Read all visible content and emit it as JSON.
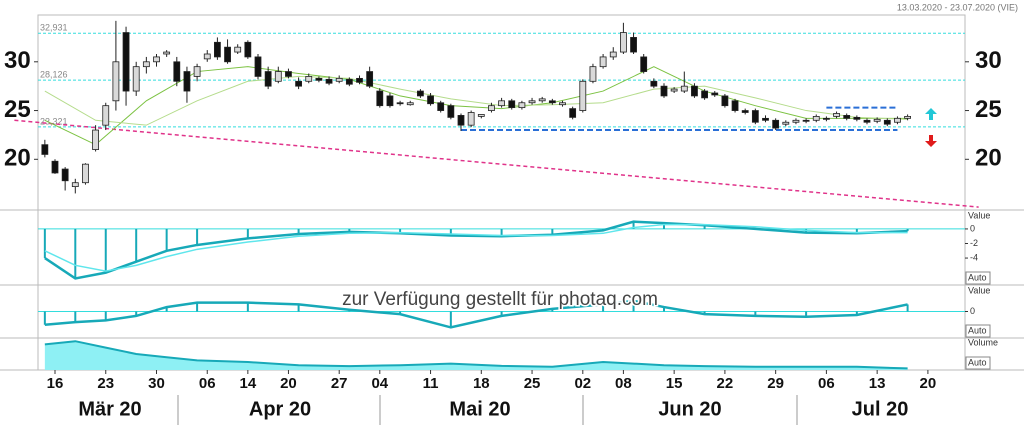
{
  "date_range": "13.03.2020 - 23.07.2020 (VIE)",
  "watermark": "zur Verfügung gestellt für photaq.com",
  "chart_data": [
    {
      "type": "candlestick",
      "ylim": [
        14.8,
        34.8
      ],
      "yticks": [
        20,
        25,
        30
      ],
      "open": [
        21.5,
        19.8,
        19,
        17.2,
        17.6,
        21,
        23.5,
        26,
        33,
        27,
        29.5,
        30,
        30.8,
        30,
        29,
        28.5,
        30.3,
        32,
        31.5,
        31,
        32,
        30.5,
        29,
        28,
        29,
        28,
        28,
        28.3,
        28.2,
        28,
        28.2,
        28.3,
        29,
        27,
        26.5,
        25.8,
        25.6,
        27,
        26.5,
        25.8,
        25.5,
        24.5,
        23.5,
        24.4,
        25,
        25.5,
        26,
        25.3,
        25.8,
        26,
        26,
        25.6,
        25.2,
        25,
        28,
        29.5,
        30.5,
        31,
        32.5,
        30.5,
        28,
        27.5,
        27,
        27,
        27.5,
        27,
        26.8,
        26.5,
        26,
        25,
        25,
        24.2,
        24,
        23.6,
        23.8,
        24,
        24,
        24.2,
        24.4,
        24.5,
        24.3,
        24,
        23.9,
        24,
        23.8,
        24.2
      ],
      "high": [
        22,
        20,
        19.2,
        18,
        19.6,
        23.5,
        25.8,
        34.2,
        33.6,
        30,
        30.5,
        30.8,
        31.2,
        30.5,
        29.5,
        29.8,
        31.2,
        32.5,
        32.3,
        31.8,
        32.2,
        30.8,
        29.5,
        29.5,
        29.3,
        28.4,
        28.8,
        28.5,
        28.5,
        28.6,
        28.4,
        28.6,
        29.5,
        27.3,
        26.8,
        26,
        26,
        27.2,
        26.8,
        26,
        25.7,
        24.7,
        25,
        24.6,
        25.8,
        26.3,
        26.2,
        26,
        26.3,
        26.4,
        26.2,
        26,
        25.4,
        28.2,
        29.8,
        30.8,
        31.5,
        34,
        33,
        30.8,
        28.3,
        27.8,
        27.4,
        29,
        27.8,
        27.2,
        27,
        26.7,
        26.2,
        25.2,
        25.2,
        24.5,
        24.2,
        24,
        24.2,
        24.2,
        24.6,
        24.4,
        24.9,
        24.7,
        24.5,
        24.2,
        24.3,
        24.2,
        24.4,
        24.6
      ],
      "low": [
        20.2,
        18.5,
        16.8,
        16.5,
        17.4,
        20.8,
        23,
        25,
        25.5,
        26.5,
        28.8,
        29.5,
        30.5,
        27.5,
        25.8,
        28,
        30,
        30.2,
        29.8,
        30.8,
        30.3,
        28.2,
        27.2,
        27.8,
        28.3,
        27.2,
        27.8,
        27.9,
        27.6,
        27.8,
        27.5,
        27.7,
        27.3,
        25.3,
        25.3,
        25.5,
        25.5,
        26.3,
        25.5,
        24.8,
        24.1,
        22.9,
        23.3,
        24.2,
        24.8,
        25.3,
        25.1,
        25.1,
        25.6,
        25.8,
        25.6,
        25.4,
        24.1,
        24.8,
        27.8,
        29.3,
        30.2,
        30.8,
        30.8,
        28.8,
        27.3,
        26.3,
        26.8,
        26.8,
        26.3,
        26.1,
        26.4,
        25.3,
        24.8,
        24.6,
        23.6,
        23.8,
        23,
        23.4,
        23.6,
        23.7,
        23.8,
        23.9,
        24.2,
        24,
        23.9,
        23.6,
        23.7,
        23.4,
        23.6,
        24
      ],
      "close": [
        20.5,
        18.6,
        17.8,
        17.6,
        19.5,
        23,
        25.5,
        30,
        27,
        29.5,
        30,
        30.5,
        31,
        28,
        27,
        29.5,
        30.8,
        30.5,
        30,
        31.5,
        30.5,
        28.5,
        27.5,
        29,
        28.5,
        27.5,
        28.5,
        28.1,
        27.8,
        28.3,
        27.7,
        27.9,
        27.5,
        25.5,
        25.5,
        25.7,
        25.8,
        26.5,
        25.7,
        25,
        24.3,
        23.5,
        24.8,
        24.6,
        25.5,
        26,
        25.3,
        25.8,
        26,
        26.2,
        25.8,
        25.8,
        24.3,
        28,
        29.5,
        30.5,
        31,
        33,
        31,
        29,
        27.5,
        26.5,
        27.2,
        27.5,
        26.5,
        26.3,
        26.6,
        25.5,
        25,
        24.8,
        23.8,
        24,
        23.2,
        23.8,
        24,
        23.9,
        24.4,
        24.1,
        24.7,
        24.2,
        24.1,
        23.8,
        24.1,
        23.6,
        24.2,
        24.4
      ],
      "up_color": "#d9d9d9",
      "down_color": "#111111",
      "moving_averages": [
        {
          "color": "#7cc242",
          "x": [
            0,
            5,
            10,
            15,
            20,
            25,
            30,
            35,
            40,
            45,
            50,
            55,
            60,
            65,
            70,
            75,
            80,
            85
          ],
          "values": [
            24,
            21.5,
            26,
            29,
            29.5,
            28.8,
            28.2,
            26.5,
            25.5,
            25.2,
            25.8,
            27,
            29.5,
            27,
            25.5,
            24.2,
            24.2,
            24.2
          ]
        },
        {
          "color": "#b5dc8c",
          "x": [
            0,
            5,
            10,
            15,
            20,
            25,
            30,
            35,
            40,
            45,
            50,
            55,
            60,
            65,
            70,
            75,
            80,
            85
          ],
          "values": [
            27,
            24,
            23.5,
            26,
            28,
            28.5,
            28.3,
            27.2,
            26.2,
            25.5,
            25.6,
            25.8,
            27.2,
            27.5,
            26.3,
            25,
            24.3,
            24.1
          ]
        }
      ],
      "levels": [
        {
          "value": 32.931,
          "label": "32,931"
        },
        {
          "value": 28.126,
          "label": "28,126"
        },
        {
          "value": 23.321,
          "label": "23,321"
        }
      ],
      "level_color": "#33dddd",
      "trendline": {
        "x": [
          -3,
          92
        ],
        "values": [
          24,
          15.1
        ],
        "color": "#e0338a"
      },
      "support": {
        "x": [
          41,
          84
        ],
        "value": 23.0,
        "color": "#2a6fd6"
      },
      "resistance": {
        "x": [
          77,
          84
        ],
        "value": 25.3,
        "color": "#2a6fd6"
      },
      "xticks": [
        {
          "value": 1,
          "label": "16"
        },
        {
          "value": 6,
          "label": "23"
        },
        {
          "value": 11,
          "label": "30"
        },
        {
          "value": 16,
          "label": "06"
        },
        {
          "value": 20,
          "label": "14"
        },
        {
          "value": 24,
          "label": "20"
        },
        {
          "value": 29,
          "label": "27"
        },
        {
          "value": 33,
          "label": "04"
        },
        {
          "value": 38,
          "label": "11"
        },
        {
          "value": 43,
          "label": "18"
        },
        {
          "value": 48,
          "label": "25"
        },
        {
          "value": 53,
          "label": "02"
        },
        {
          "value": 57,
          "label": "08"
        },
        {
          "value": 62,
          "label": "15"
        },
        {
          "value": 67,
          "label": "22"
        },
        {
          "value": 72,
          "label": "29"
        },
        {
          "value": 77,
          "label": "06"
        },
        {
          "value": 82,
          "label": "13"
        },
        {
          "value": 87,
          "label": "20"
        }
      ],
      "months": [
        "Mär 20",
        "Apr 20",
        "Mai 20",
        "Jun 20",
        "Jul 20"
      ]
    },
    {
      "type": "indicator",
      "label": "Value",
      "button": "Auto",
      "ylim": [
        -7.7,
        2.6
      ],
      "yticks": [
        0,
        -2,
        -4
      ],
      "x": [
        0,
        3,
        6,
        9,
        12,
        15,
        20,
        25,
        30,
        35,
        40,
        45,
        50,
        55,
        58,
        61,
        65,
        70,
        75,
        80,
        85
      ],
      "values": [
        -4,
        -6.8,
        -6,
        -4.5,
        -3,
        -2.2,
        -1.3,
        -0.7,
        -0.4,
        -0.6,
        -0.9,
        -1,
        -0.8,
        -0.2,
        1,
        0.8,
        0.5,
        0,
        -0.5,
        -0.6,
        -0.3
      ],
      "color": "#17a9b8",
      "signal": {
        "color": "#5fe6ec",
        "values": [
          -3,
          -5,
          -5.8,
          -5,
          -3.8,
          -2.8,
          -1.8,
          -1,
          -0.6,
          -0.5,
          -0.7,
          -0.9,
          -0.9,
          -0.6,
          0.2,
          0.6,
          0.6,
          0.3,
          -0.2,
          -0.5,
          -0.5
        ]
      }
    },
    {
      "type": "indicator",
      "label": "Value",
      "button": "Auto",
      "ylim": [
        -3,
        3
      ],
      "yticks": [
        0
      ],
      "x": [
        0,
        3,
        6,
        9,
        12,
        15,
        20,
        25,
        30,
        35,
        40,
        45,
        50,
        55,
        58,
        61,
        65,
        70,
        75,
        80,
        85
      ],
      "values": [
        -1.5,
        -1.2,
        -1,
        -0.5,
        0.5,
        1,
        1,
        0.8,
        0.2,
        -0.3,
        -1.8,
        -0.5,
        0.3,
        0.8,
        1.2,
        0.5,
        -0.3,
        -0.5,
        -0.6,
        -0.4,
        0.8
      ],
      "color": "#17a9b8"
    },
    {
      "type": "area",
      "label": "Volume",
      "button": "Auto",
      "ylim": [
        0,
        10
      ],
      "x": [
        0,
        3,
        6,
        9,
        12,
        15,
        20,
        25,
        30,
        35,
        40,
        45,
        50,
        55,
        58,
        61,
        65,
        70,
        75,
        80,
        85
      ],
      "values": [
        8,
        9,
        7,
        5,
        4,
        3,
        2.5,
        1.5,
        1.2,
        1.5,
        2,
        1.3,
        1,
        2.5,
        2,
        1.5,
        1.2,
        1,
        1,
        1,
        0.5
      ],
      "color": "#17a9b8",
      "fill": "#8ef0f4"
    }
  ]
}
